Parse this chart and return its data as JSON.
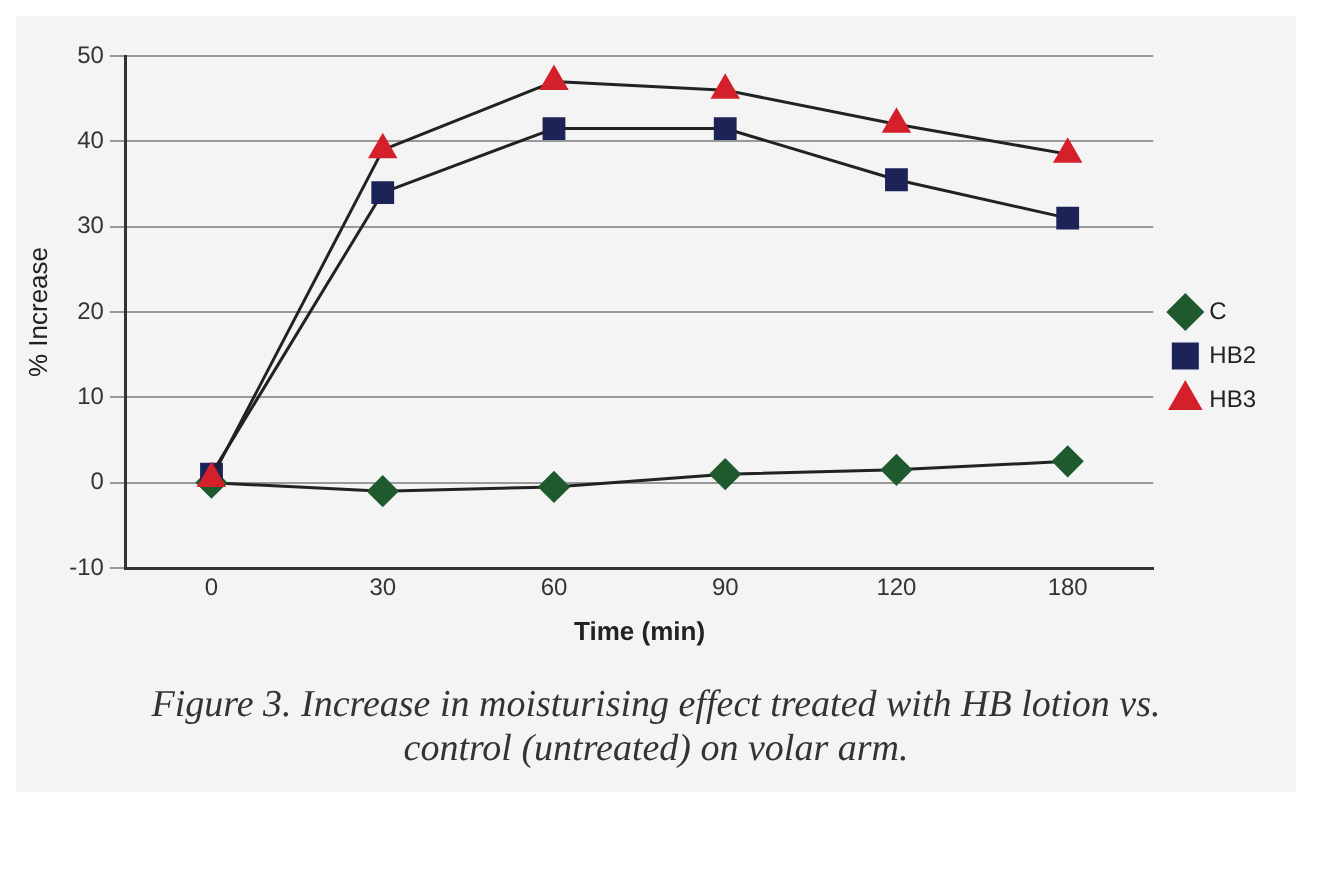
{
  "chart_data": {
    "type": "line",
    "xlabel": "Time (min)",
    "ylabel": "% Increase",
    "categories": [
      "0",
      "30",
      "60",
      "90",
      "120",
      "180"
    ],
    "series": [
      {
        "name": "C",
        "color": "#1e5a2e",
        "marker": "diamond",
        "values": [
          0,
          -1,
          -0.5,
          1,
          1.5,
          2.5
        ]
      },
      {
        "name": "HB2",
        "color": "#1c2357",
        "marker": "square",
        "values": [
          1,
          34,
          41.5,
          41.5,
          35.5,
          31
        ]
      },
      {
        "name": "HB3",
        "color": "#d4202a",
        "marker": "triangle",
        "values": [
          0.5,
          39,
          47,
          46,
          42,
          38.5
        ]
      }
    ],
    "ylim": [
      -10,
      50
    ],
    "yticks": [
      -10,
      0,
      10,
      20,
      30,
      40,
      50
    ],
    "grid": "y",
    "legend": "right",
    "annotations": [
      "Figure 3. Increase in moisturising effect treated with HB lotion vs. control (untreated) on volar arm."
    ]
  }
}
